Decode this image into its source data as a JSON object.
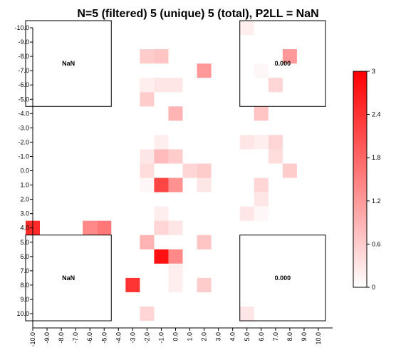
{
  "chart_data": {
    "type": "heatmap",
    "title": "N=5 (filtered) 5 (unique) 5 (total), P2LL = NaN",
    "xlabel": "",
    "ylabel": "",
    "x_ticks": [
      "-10.0",
      "-9.0",
      "-8.0",
      "-7.0",
      "-6.0",
      "-5.0",
      "-4.0",
      "-3.0",
      "-2.0",
      "-1.0",
      "0.0",
      "1.0",
      "2.0",
      "3.0",
      "4.0",
      "5.0",
      "6.0",
      "7.0",
      "8.0",
      "9.0",
      "10.0"
    ],
    "y_ticks": [
      "-10.0",
      "-9.0",
      "-8.0",
      "-7.0",
      "-6.0",
      "-5.0",
      "-4.0",
      "-3.0",
      "-2.0",
      "-1.0",
      "0.0",
      "1.0",
      "2.0",
      "3.0",
      "4.0",
      "5.0",
      "6.0",
      "7.0",
      "8.0",
      "9.0",
      "10.0"
    ],
    "xlim": [
      -10,
      10
    ],
    "ylim": [
      -10,
      10
    ],
    "y_inverted": true,
    "colorbar": {
      "min": 0,
      "max": 3,
      "ticks": [
        "0",
        "0.6",
        "1.2",
        "1.8",
        "2.4",
        "3"
      ],
      "low_color": "#ffffff",
      "high_color": "#ff0000"
    },
    "quadrant_labels": [
      {
        "position": "top-left",
        "text": "NaN"
      },
      {
        "position": "top-right",
        "text": "0.000"
      },
      {
        "position": "bottom-left",
        "text": "NaN"
      },
      {
        "position": "bottom-right",
        "text": "0.000"
      }
    ],
    "cells": [
      {
        "x": 5,
        "y": -10,
        "value": 0.2
      },
      {
        "x": -2,
        "y": -8,
        "value": 0.6
      },
      {
        "x": -1,
        "y": -8,
        "value": 0.7
      },
      {
        "x": 8,
        "y": -8,
        "value": 1.2
      },
      {
        "x": 2,
        "y": -7,
        "value": 1.2
      },
      {
        "x": 6,
        "y": -7,
        "value": 0.1
      },
      {
        "x": -2,
        "y": -6,
        "value": 0.2
      },
      {
        "x": -1,
        "y": -6,
        "value": 0.3
      },
      {
        "x": 0,
        "y": -6,
        "value": 0.3
      },
      {
        "x": 7,
        "y": -6,
        "value": 0.5
      },
      {
        "x": -2,
        "y": -5,
        "value": 0.6
      },
      {
        "x": 0,
        "y": -4,
        "value": 0.9
      },
      {
        "x": 6,
        "y": -4,
        "value": 0.7
      },
      {
        "x": -1,
        "y": -2,
        "value": 0.2
      },
      {
        "x": 5,
        "y": -2,
        "value": 0.3
      },
      {
        "x": 6,
        "y": -2,
        "value": 0.2
      },
      {
        "x": 7,
        "y": -2,
        "value": 0.5
      },
      {
        "x": -2,
        "y": -1,
        "value": 0.3
      },
      {
        "x": -1,
        "y": -1,
        "value": 0.8
      },
      {
        "x": 0,
        "y": -1,
        "value": 0.6
      },
      {
        "x": 7,
        "y": -1,
        "value": 0.4
      },
      {
        "x": -2,
        "y": 0,
        "value": 0.4
      },
      {
        "x": 1,
        "y": 0,
        "value": 0.5
      },
      {
        "x": 2,
        "y": 0,
        "value": 0.6
      },
      {
        "x": 8,
        "y": 0,
        "value": 0.6
      },
      {
        "x": -2,
        "y": 1,
        "value": 0.1
      },
      {
        "x": -1,
        "y": 1,
        "value": 2.2
      },
      {
        "x": 0,
        "y": 1,
        "value": 1.3
      },
      {
        "x": 2,
        "y": 1,
        "value": 0.3
      },
      {
        "x": 6,
        "y": 1,
        "value": 0.5
      },
      {
        "x": 6,
        "y": 2,
        "value": 0.3
      },
      {
        "x": -1,
        "y": 3,
        "value": 0.2
      },
      {
        "x": 5,
        "y": 3,
        "value": 0.3
      },
      {
        "x": 6,
        "y": 3,
        "value": 0.1
      },
      {
        "x": -10,
        "y": 4,
        "value": 2.5
      },
      {
        "x": -6,
        "y": 4,
        "value": 1.4
      },
      {
        "x": -5,
        "y": 4,
        "value": 1.6
      },
      {
        "x": -1,
        "y": 4,
        "value": 0.5
      },
      {
        "x": 0,
        "y": 4,
        "value": 0.3
      },
      {
        "x": -2,
        "y": 5,
        "value": 0.9
      },
      {
        "x": 2,
        "y": 5,
        "value": 0.7
      },
      {
        "x": -1,
        "y": 6,
        "value": 2.8
      },
      {
        "x": 0,
        "y": 6,
        "value": 1.4
      },
      {
        "x": 0,
        "y": 7,
        "value": 0.2
      },
      {
        "x": -3,
        "y": 8,
        "value": 2.4
      },
      {
        "x": 0,
        "y": 8,
        "value": 0.2
      },
      {
        "x": 2,
        "y": 8,
        "value": 0.6
      },
      {
        "x": -2,
        "y": 10,
        "value": 0.5
      },
      {
        "x": 5,
        "y": 10,
        "value": 0.3
      }
    ]
  }
}
